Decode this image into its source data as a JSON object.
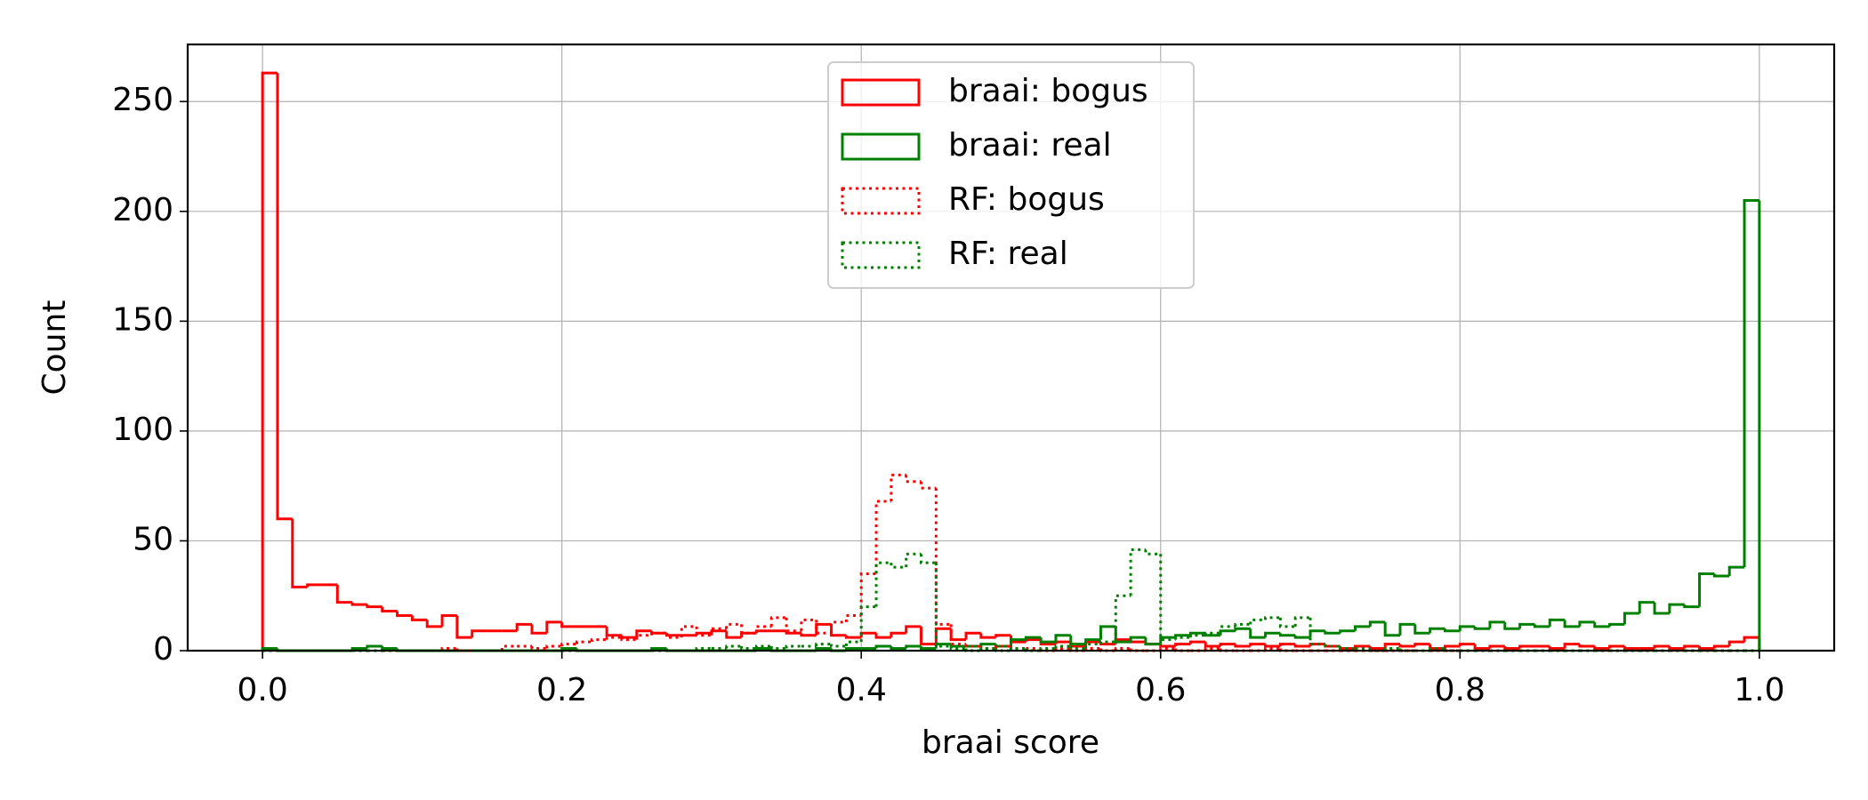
{
  "chart_data": {
    "type": "histogram",
    "histtype": "step",
    "xlabel": "braai score",
    "ylabel": "Count",
    "bins": [
      0,
      0.01,
      0.02,
      0.03,
      0.04,
      0.05,
      0.06,
      0.07,
      0.08,
      0.09,
      0.1,
      0.11,
      0.12,
      0.13,
      0.14,
      0.15,
      0.16,
      0.17,
      0.18,
      0.19,
      0.2,
      0.21,
      0.22,
      0.23,
      0.24,
      0.25,
      0.26,
      0.27,
      0.28,
      0.29,
      0.3,
      0.31,
      0.32,
      0.33,
      0.34,
      0.35,
      0.36,
      0.37,
      0.38,
      0.39,
      0.4,
      0.41,
      0.42,
      0.43,
      0.44,
      0.45,
      0.46,
      0.47,
      0.48,
      0.49,
      0.5,
      0.51,
      0.52,
      0.53,
      0.54,
      0.55,
      0.56,
      0.57,
      0.58,
      0.59,
      0.6,
      0.61,
      0.62,
      0.63,
      0.64,
      0.65,
      0.66,
      0.67,
      0.68,
      0.69,
      0.7,
      0.71,
      0.72,
      0.73,
      0.74,
      0.75,
      0.76,
      0.77,
      0.78,
      0.79,
      0.8,
      0.81,
      0.82,
      0.83,
      0.84,
      0.85,
      0.86,
      0.87,
      0.88,
      0.89,
      0.9,
      0.91,
      0.92,
      0.93,
      0.94,
      0.95,
      0.96,
      0.97,
      0.98,
      0.99,
      1
    ],
    "series": [
      {
        "name": "braai: bogus",
        "color": "#ff0000",
        "linestyle": "solid",
        "values": [
          263,
          60,
          29,
          30,
          30,
          22,
          21,
          20,
          18,
          16,
          14,
          11,
          16,
          6,
          9,
          9,
          9,
          12,
          8,
          13,
          11,
          11,
          11,
          7,
          6,
          9,
          8,
          7,
          7,
          8,
          9,
          6,
          8,
          9,
          9,
          8,
          7,
          12,
          7,
          6,
          8,
          6,
          8,
          11,
          3,
          10,
          5,
          8,
          6,
          7,
          4,
          5,
          3,
          4,
          2,
          4,
          3,
          5,
          4,
          3,
          2,
          3,
          4,
          2,
          3,
          2,
          3,
          2,
          3,
          2,
          3,
          2,
          1,
          2,
          1,
          3,
          2,
          3,
          1,
          2,
          3,
          1,
          2,
          1,
          2,
          2,
          1,
          3,
          2,
          1,
          2,
          1,
          1,
          2,
          1,
          2,
          1,
          2,
          4,
          6
        ]
      },
      {
        "name": "braai: real",
        "color": "#008000",
        "linestyle": "solid",
        "values": [
          1,
          0,
          0,
          0,
          0,
          0,
          1,
          2,
          1,
          0,
          0,
          0,
          0,
          0,
          0,
          0,
          0,
          0,
          0,
          0,
          1,
          0,
          0,
          0,
          0,
          0,
          1,
          0,
          0,
          0,
          0,
          0,
          0,
          1,
          0,
          0,
          0,
          1,
          0,
          1,
          1,
          2,
          1,
          2,
          1,
          3,
          2,
          2,
          3,
          2,
          5,
          6,
          4,
          7,
          3,
          5,
          11,
          4,
          6,
          3,
          6,
          7,
          8,
          7,
          9,
          10,
          6,
          8,
          7,
          6,
          9,
          8,
          9,
          11,
          13,
          7,
          12,
          8,
          10,
          9,
          11,
          10,
          13,
          10,
          12,
          11,
          14,
          11,
          13,
          11,
          12,
          17,
          22,
          17,
          21,
          20,
          35,
          34,
          38,
          205
        ]
      },
      {
        "name": "RF: bogus",
        "color": "#ff0000",
        "linestyle": "dotted",
        "values": [
          0,
          0,
          0,
          0,
          0,
          0,
          0,
          0,
          0,
          0,
          0,
          0,
          1,
          0,
          0,
          0,
          2,
          2,
          1,
          2,
          3,
          4,
          5,
          6,
          5,
          7,
          8,
          6,
          11,
          7,
          10,
          12,
          8,
          11,
          15,
          9,
          14,
          8,
          13,
          16,
          35,
          68,
          80,
          77,
          74,
          12,
          3,
          2,
          1,
          2,
          1,
          1,
          0,
          1,
          0,
          1,
          0,
          1,
          0,
          0,
          1,
          0,
          0,
          1,
          0,
          0,
          0,
          1,
          0,
          0,
          0,
          0,
          0,
          0,
          0,
          0,
          0,
          0,
          0,
          0,
          0,
          0,
          0,
          0,
          0,
          0,
          0,
          0,
          0,
          0,
          0,
          0,
          0,
          0,
          0,
          0,
          0,
          0,
          0,
          0
        ]
      },
      {
        "name": "RF: real",
        "color": "#008000",
        "linestyle": "dotted",
        "values": [
          0,
          0,
          0,
          0,
          0,
          0,
          0,
          0,
          0,
          0,
          0,
          0,
          0,
          0,
          0,
          0,
          0,
          0,
          0,
          0,
          0,
          0,
          0,
          0,
          0,
          0,
          0,
          0,
          0,
          1,
          1,
          2,
          1,
          2,
          1,
          2,
          2,
          3,
          2,
          4,
          20,
          40,
          38,
          44,
          40,
          2,
          1,
          0,
          1,
          0,
          1,
          0,
          1,
          2,
          1,
          3,
          4,
          25,
          46,
          44,
          5,
          6,
          7,
          8,
          11,
          12,
          14,
          15,
          11,
          15,
          3,
          2,
          1,
          1,
          0,
          1,
          0,
          0,
          1,
          0,
          0,
          0,
          0,
          0,
          0,
          0,
          0,
          0,
          0,
          0,
          0,
          0,
          0,
          0,
          0,
          0,
          0,
          0,
          0,
          0
        ]
      }
    ],
    "xlim": [
      -0.05,
      1.05
    ],
    "ylim": [
      0,
      276
    ],
    "xticks": [
      {
        "value": 0,
        "label": "0.0"
      },
      0.2,
      0.4,
      0.6,
      0.8,
      {
        "value": 1,
        "label": "1.0"
      }
    ],
    "yticks": [
      0,
      50,
      100,
      150,
      200,
      250
    ],
    "grid": true,
    "legend": "upper center"
  }
}
